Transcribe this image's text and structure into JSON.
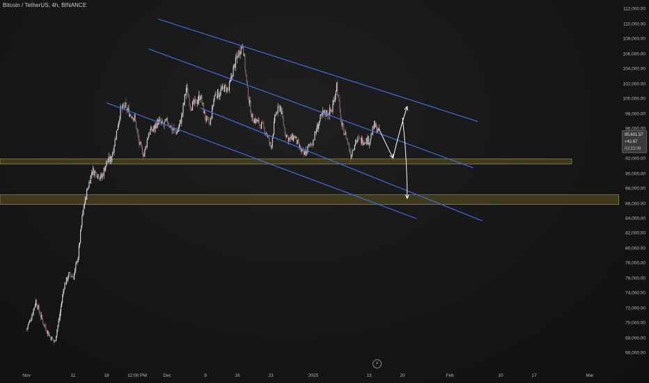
{
  "header": {
    "symbol": "Bitcoin / TetherUS, 4h, BINANCE"
  },
  "price_box": {
    "price": "95,601.57",
    "change": "+42.67",
    "countdown": "03:23:09"
  },
  "icons": {
    "timeline_marker": "lightning-bolt-icon"
  },
  "colors": {
    "background": "#131313",
    "candle_up": "#dcdcdc",
    "candle_down": "#8a6a70",
    "channel_lines": "#3f6fe0",
    "support_zone_fill": "#4a4520",
    "support_zone_border": "#8a8440",
    "projection_arrows": "#ffffff"
  },
  "chart_data": {
    "type": "candlestick",
    "title": "Bitcoin / TetherUS, 4h, BINANCE",
    "x_ticks": [
      "Nov",
      "11",
      "18",
      "12:00 PM",
      "Dec",
      "9",
      "16",
      "23",
      "2025",
      "13",
      "20",
      "Feb",
      "10",
      "17",
      "Mar"
    ],
    "y_ticks": [
      "66,000.00",
      "68,000.00",
      "70,000.00",
      "72,000.00",
      "74,000.00",
      "76,000.00",
      "78,000.00",
      "80,000.00",
      "82,000.00",
      "84,000.00",
      "86,000.00",
      "88,000.00",
      "90,000.00",
      "92,000.00",
      "94,000.00",
      "96,000.00",
      "98,000.00",
      "100,000.00",
      "102,000.00",
      "104,000.00",
      "106,000.00",
      "108,000.00",
      "110,000.00",
      "112,000.00"
    ],
    "ylim": [
      65000,
      112500
    ],
    "close_path": [
      {
        "t": "2024-11-01",
        "close": 69200
      },
      {
        "t": "2024-11-02",
        "close": 70800
      },
      {
        "t": "2024-11-03",
        "close": 73000
      },
      {
        "t": "2024-11-04",
        "close": 71000
      },
      {
        "t": "2024-11-05",
        "close": 69500
      },
      {
        "t": "2024-11-06",
        "close": 68200
      },
      {
        "t": "2024-11-07",
        "close": 67500
      },
      {
        "t": "2024-11-08",
        "close": 70800
      },
      {
        "t": "2024-11-09",
        "close": 75000
      },
      {
        "t": "2024-11-10",
        "close": 76500
      },
      {
        "t": "2024-11-11",
        "close": 76200
      },
      {
        "t": "2024-11-12",
        "close": 79000
      },
      {
        "t": "2024-11-13",
        "close": 85000
      },
      {
        "t": "2024-11-14",
        "close": 88000
      },
      {
        "t": "2024-11-15",
        "close": 90500
      },
      {
        "t": "2024-11-16",
        "close": 90000
      },
      {
        "t": "2024-11-17",
        "close": 89500
      },
      {
        "t": "2024-11-18",
        "close": 91500
      },
      {
        "t": "2024-11-19",
        "close": 92000
      },
      {
        "t": "2024-11-20",
        "close": 95000
      },
      {
        "t": "2024-11-21",
        "close": 98500
      },
      {
        "t": "2024-11-22",
        "close": 99000
      },
      {
        "t": "2024-11-23",
        "close": 98000
      },
      {
        "t": "2024-11-24",
        "close": 97500
      },
      {
        "t": "2024-11-25",
        "close": 94000
      },
      {
        "t": "2024-11-26",
        "close": 92500
      },
      {
        "t": "2024-11-27",
        "close": 95500
      },
      {
        "t": "2024-11-28",
        "close": 96000
      },
      {
        "t": "2024-11-29",
        "close": 97000
      },
      {
        "t": "2024-11-30",
        "close": 96500
      },
      {
        "t": "2024-12-01",
        "close": 97000
      },
      {
        "t": "2024-12-02",
        "close": 96000
      },
      {
        "t": "2024-12-03",
        "close": 95500
      },
      {
        "t": "2024-12-04",
        "close": 97500
      },
      {
        "t": "2024-12-05",
        "close": 101500
      },
      {
        "t": "2024-12-06",
        "close": 99000
      },
      {
        "t": "2024-12-07",
        "close": 99500
      },
      {
        "t": "2024-12-08",
        "close": 100500
      },
      {
        "t": "2024-12-09",
        "close": 97500
      },
      {
        "t": "2024-12-10",
        "close": 96500
      },
      {
        "t": "2024-12-11",
        "close": 100500
      },
      {
        "t": "2024-12-12",
        "close": 100800
      },
      {
        "t": "2024-12-13",
        "close": 101500
      },
      {
        "t": "2024-12-14",
        "close": 101200
      },
      {
        "t": "2024-12-15",
        "close": 104000
      },
      {
        "t": "2024-12-16",
        "close": 106000
      },
      {
        "t": "2024-12-17",
        "close": 107500
      },
      {
        "t": "2024-12-18",
        "close": 101000
      },
      {
        "t": "2024-12-19",
        "close": 97500
      },
      {
        "t": "2024-12-20",
        "close": 97000
      },
      {
        "t": "2024-12-21",
        "close": 96500
      },
      {
        "t": "2024-12-22",
        "close": 95500
      },
      {
        "t": "2024-12-23",
        "close": 93500
      },
      {
        "t": "2024-12-24",
        "close": 98000
      },
      {
        "t": "2024-12-25",
        "close": 99000
      },
      {
        "t": "2024-12-26",
        "close": 95500
      },
      {
        "t": "2024-12-27",
        "close": 94500
      },
      {
        "t": "2024-12-28",
        "close": 95000
      },
      {
        "t": "2024-12-29",
        "close": 93500
      },
      {
        "t": "2024-12-30",
        "close": 92500
      },
      {
        "t": "2024-12-31",
        "close": 93500
      },
      {
        "t": "2025-01-01",
        "close": 94500
      },
      {
        "t": "2025-01-02",
        "close": 96500
      },
      {
        "t": "2025-01-03",
        "close": 98000
      },
      {
        "t": "2025-01-04",
        "close": 98200
      },
      {
        "t": "2025-01-05",
        "close": 98500
      },
      {
        "t": "2025-01-06",
        "close": 102000
      },
      {
        "t": "2025-01-07",
        "close": 96500
      },
      {
        "t": "2025-01-08",
        "close": 95000
      },
      {
        "t": "2025-01-09",
        "close": 92500
      },
      {
        "t": "2025-01-10",
        "close": 94500
      },
      {
        "t": "2025-01-11",
        "close": 94500
      },
      {
        "t": "2025-01-12",
        "close": 94500
      },
      {
        "t": "2025-01-13",
        "close": 94500
      },
      {
        "t": "2025-01-14",
        "close": 96500
      },
      {
        "t": "2025-01-15",
        "close": 95600
      }
    ],
    "channel_lines": [
      {
        "p1": {
          "t": "2024-11-29",
          "price": 110700
        },
        "p2": {
          "t": "2025-02-05",
          "price": 97000
        }
      },
      {
        "p1": {
          "t": "2024-11-27",
          "price": 106700
        },
        "p2": {
          "t": "2025-02-04",
          "price": 90800
        }
      },
      {
        "p1": {
          "t": "2024-11-18",
          "price": 99500
        },
        "p2": {
          "t": "2025-01-23",
          "price": 84000
        }
      },
      {
        "p1": {
          "t": "2024-12-08",
          "price": 98800
        },
        "p2": {
          "t": "2025-02-06",
          "price": 83700
        }
      }
    ],
    "zones": [
      {
        "from": 91300,
        "to": 92000,
        "t_end": "2025-02-25"
      },
      {
        "from": 85900,
        "to": 87200,
        "t_end": "2025-03-07"
      }
    ],
    "projections": [
      {
        "points": [
          {
            "t": "2025-01-15",
            "price": 96000
          },
          {
            "t": "2025-01-17",
            "price": 93300
          },
          {
            "t": "2025-01-18",
            "price": 92100
          }
        ]
      },
      {
        "points": [
          {
            "t": "2025-01-18",
            "price": 92100
          },
          {
            "t": "2025-01-19",
            "price": 95000
          },
          {
            "t": "2025-01-21",
            "price": 99000
          }
        ]
      },
      {
        "points": [
          {
            "t": "2025-01-20",
            "price": 97500
          },
          {
            "t": "2025-01-21",
            "price": 92000
          },
          {
            "t": "2025-01-21",
            "price": 86700
          }
        ]
      }
    ],
    "grid": false,
    "legend": "none"
  }
}
